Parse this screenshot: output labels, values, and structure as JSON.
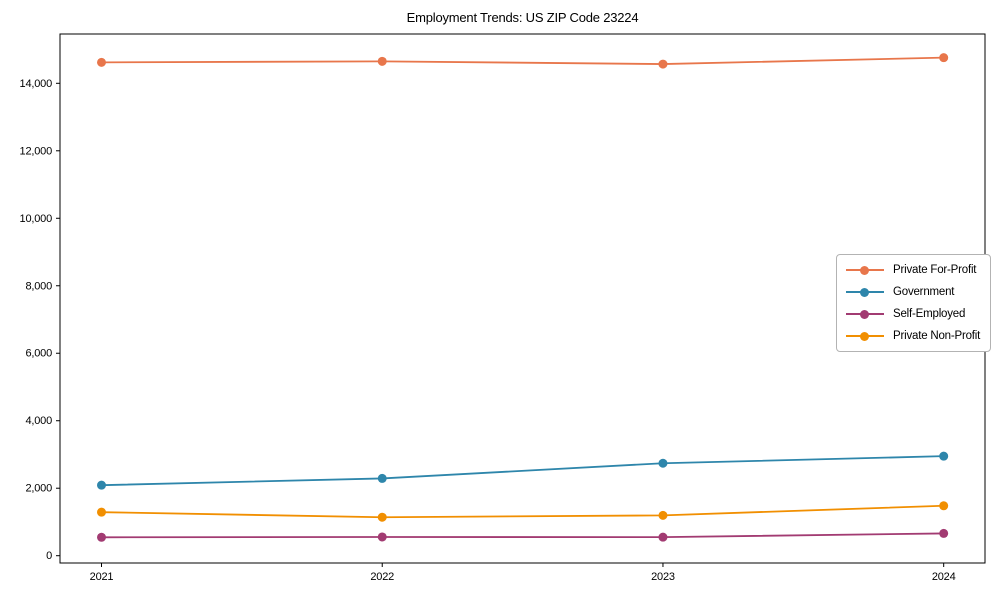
{
  "page": {
    "background": "#ffffff"
  },
  "chart_data": {
    "type": "line",
    "title": "Employment Trends: US ZIP Code 23224",
    "categories": [
      "2021",
      "2022",
      "2023",
      "2024"
    ],
    "series": [
      {
        "name": "Private For-Profit",
        "color": "#E8764B",
        "values": [
          14620,
          14650,
          14570,
          14760
        ]
      },
      {
        "name": "Government",
        "color": "#2E86AB",
        "values": [
          2090,
          2290,
          2740,
          2950
        ]
      },
      {
        "name": "Self-Employed",
        "color": "#A23B72",
        "values": [
          545,
          555,
          550,
          660
        ]
      },
      {
        "name": "Private Non-Profit",
        "color": "#F18F01",
        "values": [
          1290,
          1140,
          1195,
          1480
        ]
      }
    ],
    "xlabel": "",
    "ylabel": "",
    "ylim": [
      0,
      15500
    ],
    "yticks": [
      0,
      2000,
      4000,
      6000,
      8000,
      10000,
      12000,
      14000
    ],
    "ytick_format": "comma",
    "grid": false,
    "marker": "circle",
    "legend": {
      "position": "right-center",
      "entries": [
        "Private For-Profit",
        "Government",
        "Self-Employed",
        "Private Non-Profit"
      ]
    }
  }
}
